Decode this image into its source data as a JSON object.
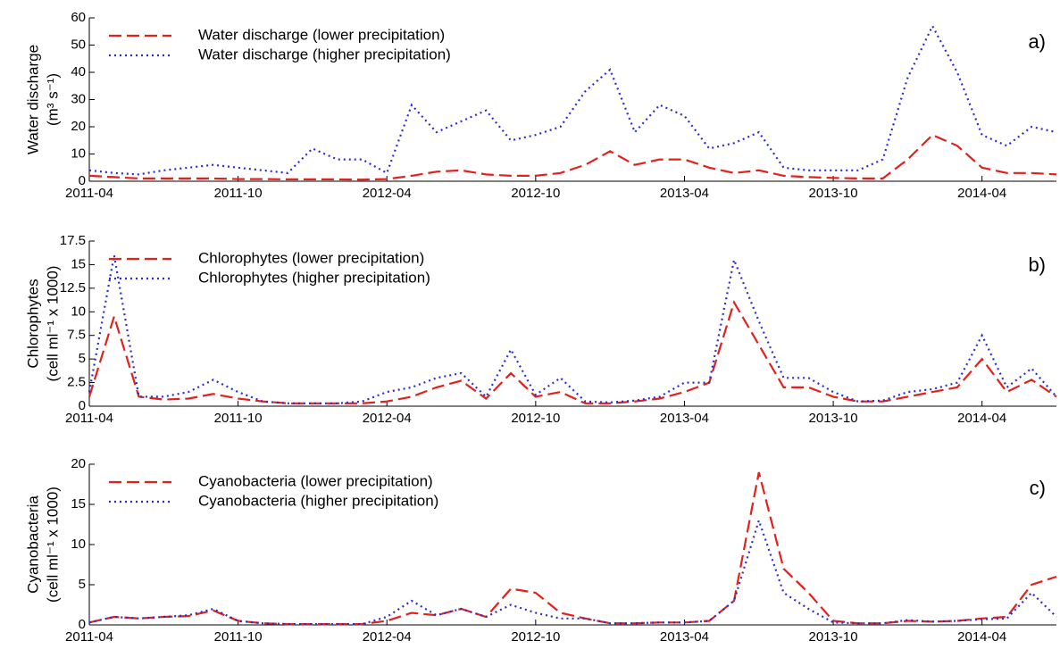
{
  "chart_data": [
    {
      "type": "line",
      "annotation": "a)",
      "ylabel": [
        "Water discharge",
        "(m³ s⁻¹)"
      ],
      "legend": "upper left",
      "x": [
        "2011-04",
        "2011-05",
        "2011-06",
        "2011-07",
        "2011-08",
        "2011-09",
        "2011-10",
        "2011-11",
        "2011-12",
        "2012-01",
        "2012-02",
        "2012-03",
        "2012-04",
        "2012-05",
        "2012-06",
        "2012-07",
        "2012-08",
        "2012-09",
        "2012-10",
        "2012-11",
        "2012-12",
        "2013-01",
        "2013-02",
        "2013-03",
        "2013-04",
        "2013-05",
        "2013-06",
        "2013-07",
        "2013-08",
        "2013-09",
        "2013-10",
        "2013-11",
        "2013-12",
        "2014-01",
        "2014-02",
        "2014-03",
        "2014-04",
        "2014-05",
        "2014-06",
        "2014-07"
      ],
      "xlim": [
        "2011-04",
        "2014-07"
      ],
      "xticks": [
        "2011-04",
        "2011-10",
        "2012-04",
        "2012-10",
        "2013-04",
        "2013-10",
        "2014-04"
      ],
      "ylim": [
        0,
        60
      ],
      "yticks": [
        0,
        10,
        20,
        30,
        40,
        50,
        60
      ],
      "series": [
        {
          "name": "Water discharge (lower precipitation)",
          "color": "#e3211c",
          "linestyle": "dashed",
          "values": [
            2,
            1.5,
            1,
            1,
            1,
            1,
            0.8,
            0.8,
            0.7,
            0.7,
            0.7,
            0.6,
            0.8,
            2,
            3.5,
            4,
            2.5,
            2,
            2,
            3,
            6,
            11,
            6,
            8,
            8,
            5,
            3,
            4,
            2,
            1.5,
            1.2,
            1,
            1,
            8,
            17,
            13,
            5,
            3,
            3,
            2.5
          ]
        },
        {
          "name": "Water discharge (higher precipitation)",
          "color": "#2b2bd6",
          "linestyle": "dotted",
          "values": [
            4,
            3,
            2.5,
            4,
            5,
            6,
            5,
            4,
            3,
            12,
            8,
            8,
            3,
            28,
            18,
            22,
            26,
            15,
            17,
            20,
            33,
            41,
            18,
            28,
            24,
            12,
            14,
            18,
            5,
            4,
            4,
            4,
            8,
            38,
            57,
            40,
            17,
            13,
            20,
            18
          ]
        }
      ]
    },
    {
      "type": "line",
      "annotation": "b)",
      "ylabel": [
        "Chlorophytes",
        "(cell ml⁻¹ x 1000)"
      ],
      "legend": "upper left",
      "x": [
        "2011-04",
        "2011-05",
        "2011-06",
        "2011-07",
        "2011-08",
        "2011-09",
        "2011-10",
        "2011-11",
        "2011-12",
        "2012-01",
        "2012-02",
        "2012-03",
        "2012-04",
        "2012-05",
        "2012-06",
        "2012-07",
        "2012-08",
        "2012-09",
        "2012-10",
        "2012-11",
        "2012-12",
        "2013-01",
        "2013-02",
        "2013-03",
        "2013-04",
        "2013-05",
        "2013-06",
        "2013-07",
        "2013-08",
        "2013-09",
        "2013-10",
        "2013-11",
        "2013-12",
        "2014-01",
        "2014-02",
        "2014-03",
        "2014-04",
        "2014-05",
        "2014-06",
        "2014-07"
      ],
      "xlim": [
        "2011-04",
        "2014-07"
      ],
      "xticks": [
        "2011-04",
        "2011-10",
        "2012-04",
        "2012-10",
        "2013-04",
        "2013-10",
        "2014-04"
      ],
      "ylim": [
        0,
        17.5
      ],
      "yticks": [
        0,
        2.5,
        5,
        7.5,
        10,
        12.5,
        15,
        17.5
      ],
      "series": [
        {
          "name": "Chlorophytes (lower precipitation)",
          "color": "#e3211c",
          "linestyle": "dashed",
          "values": [
            1,
            9.5,
            1,
            0.7,
            0.8,
            1.3,
            0.8,
            0.5,
            0.3,
            0.3,
            0.3,
            0.3,
            0.5,
            1,
            2,
            2.7,
            0.8,
            3.5,
            1,
            1.5,
            0.3,
            0.3,
            0.5,
            0.8,
            1.5,
            2.5,
            11,
            6.5,
            2,
            2,
            1,
            0.5,
            0.5,
            1,
            1.5,
            2,
            5,
            1.5,
            2.8,
            1
          ]
        },
        {
          "name": "Chlorophytes (higher precipitation)",
          "color": "#2b2bd6",
          "linestyle": "dotted",
          "values": [
            1.5,
            16,
            1,
            1,
            1.5,
            2.8,
            1.5,
            0.5,
            0.3,
            0.3,
            0.3,
            0.5,
            1.5,
            2,
            3,
            3.5,
            1,
            6,
            1.2,
            3,
            0.5,
            0.4,
            0.6,
            1,
            2.5,
            2.5,
            15.5,
            9,
            3,
            3,
            1.5,
            0.5,
            0.6,
            1.5,
            1.8,
            2.5,
            7.5,
            2,
            4,
            1
          ]
        }
      ]
    },
    {
      "type": "line",
      "annotation": "c)",
      "ylabel": [
        "Cyanobacteria",
        "(cell ml⁻¹ x 1000)"
      ],
      "legend": "upper left",
      "x": [
        "2011-04",
        "2011-05",
        "2011-06",
        "2011-07",
        "2011-08",
        "2011-09",
        "2011-10",
        "2011-11",
        "2011-12",
        "2012-01",
        "2012-02",
        "2012-03",
        "2012-04",
        "2012-05",
        "2012-06",
        "2012-07",
        "2012-08",
        "2012-09",
        "2012-10",
        "2012-11",
        "2012-12",
        "2013-01",
        "2013-02",
        "2013-03",
        "2013-04",
        "2013-05",
        "2013-06",
        "2013-07",
        "2013-08",
        "2013-09",
        "2013-10",
        "2013-11",
        "2013-12",
        "2014-01",
        "2014-02",
        "2014-03",
        "2014-04",
        "2014-05",
        "2014-06",
        "2014-07"
      ],
      "xlim": [
        "2011-04",
        "2014-07"
      ],
      "xticks": [
        "2011-04",
        "2011-10",
        "2012-04",
        "2012-10",
        "2013-04",
        "2013-10",
        "2014-04"
      ],
      "ylim": [
        0,
        20
      ],
      "yticks": [
        0,
        5,
        10,
        15,
        20
      ],
      "series": [
        {
          "name": "Cyanobacteria (lower precipitation)",
          "color": "#e3211c",
          "linestyle": "dashed",
          "values": [
            0.3,
            1,
            0.8,
            1,
            1.1,
            1.8,
            0.5,
            0.2,
            0.1,
            0.1,
            0.1,
            0.1,
            0.5,
            1.5,
            1.2,
            2,
            1,
            4.5,
            4,
            1.5,
            0.8,
            0.2,
            0.2,
            0.3,
            0.3,
            0.5,
            3,
            19,
            7,
            4,
            0.5,
            0.2,
            0.2,
            0.5,
            0.4,
            0.5,
            0.8,
            1,
            5,
            6
          ]
        },
        {
          "name": "Cyanobacteria (higher precipitation)",
          "color": "#2b2bd6",
          "linestyle": "dotted",
          "values": [
            0.3,
            1,
            0.8,
            1,
            1.2,
            2,
            0.5,
            0.2,
            0.1,
            0.1,
            0.1,
            0.1,
            1,
            3,
            1.2,
            2,
            1,
            2.5,
            1.5,
            0.8,
            0.8,
            0.2,
            0.2,
            0.3,
            0.3,
            0.5,
            3,
            13,
            4,
            2,
            0.3,
            0.2,
            0.2,
            0.6,
            0.4,
            0.5,
            0.7,
            0.8,
            4,
            1
          ]
        }
      ]
    }
  ]
}
